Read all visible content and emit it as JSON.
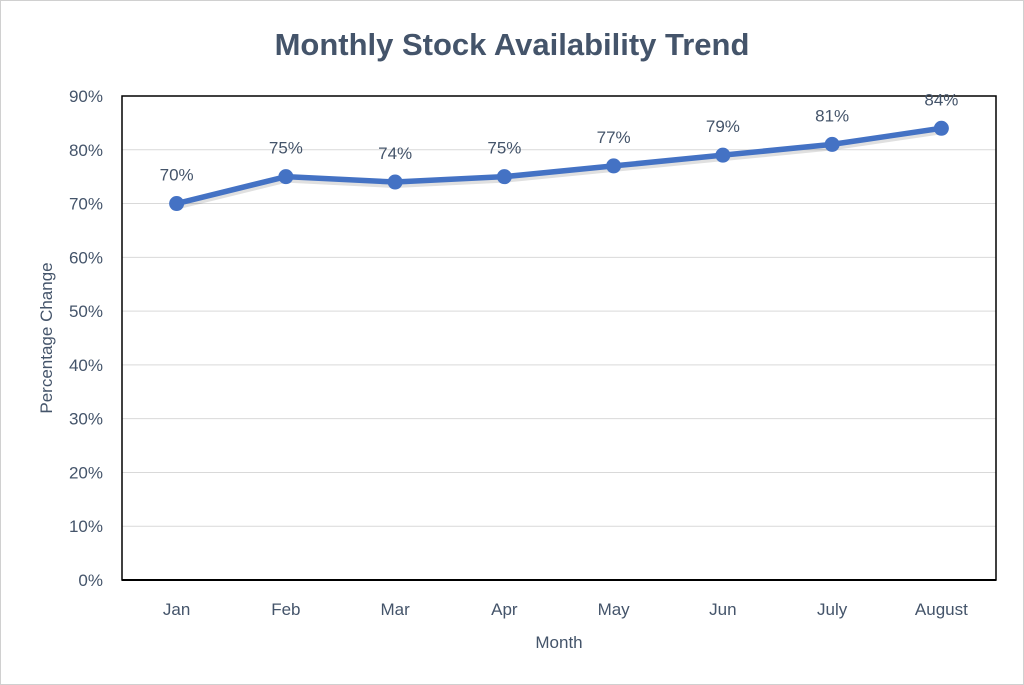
{
  "colors": {
    "text": "#44546a",
    "line": "#4472c4",
    "grid": "#d9d9d9",
    "axis": "#000000"
  },
  "chart_data": {
    "type": "line",
    "title": "Monthly Stock Availability Trend",
    "xlabel": "Month",
    "ylabel": "Percentage Change",
    "categories": [
      "Jan",
      "Feb",
      "Mar",
      "Apr",
      "May",
      "Jun",
      "July",
      "August"
    ],
    "series": [
      {
        "name": "Stock Availability",
        "values": [
          70,
          75,
          74,
          75,
          77,
          79,
          81,
          84
        ],
        "labels": [
          "70%",
          "75%",
          "74%",
          "75%",
          "77%",
          "79%",
          "81%",
          "84%"
        ]
      }
    ],
    "ylim": [
      0,
      90
    ],
    "yticks": [
      0,
      10,
      20,
      30,
      40,
      50,
      60,
      70,
      80,
      90
    ],
    "ytick_labels": [
      "0%",
      "10%",
      "20%",
      "30%",
      "40%",
      "50%",
      "60%",
      "70%",
      "80%",
      "90%"
    ],
    "grid": true,
    "legend": "none"
  }
}
